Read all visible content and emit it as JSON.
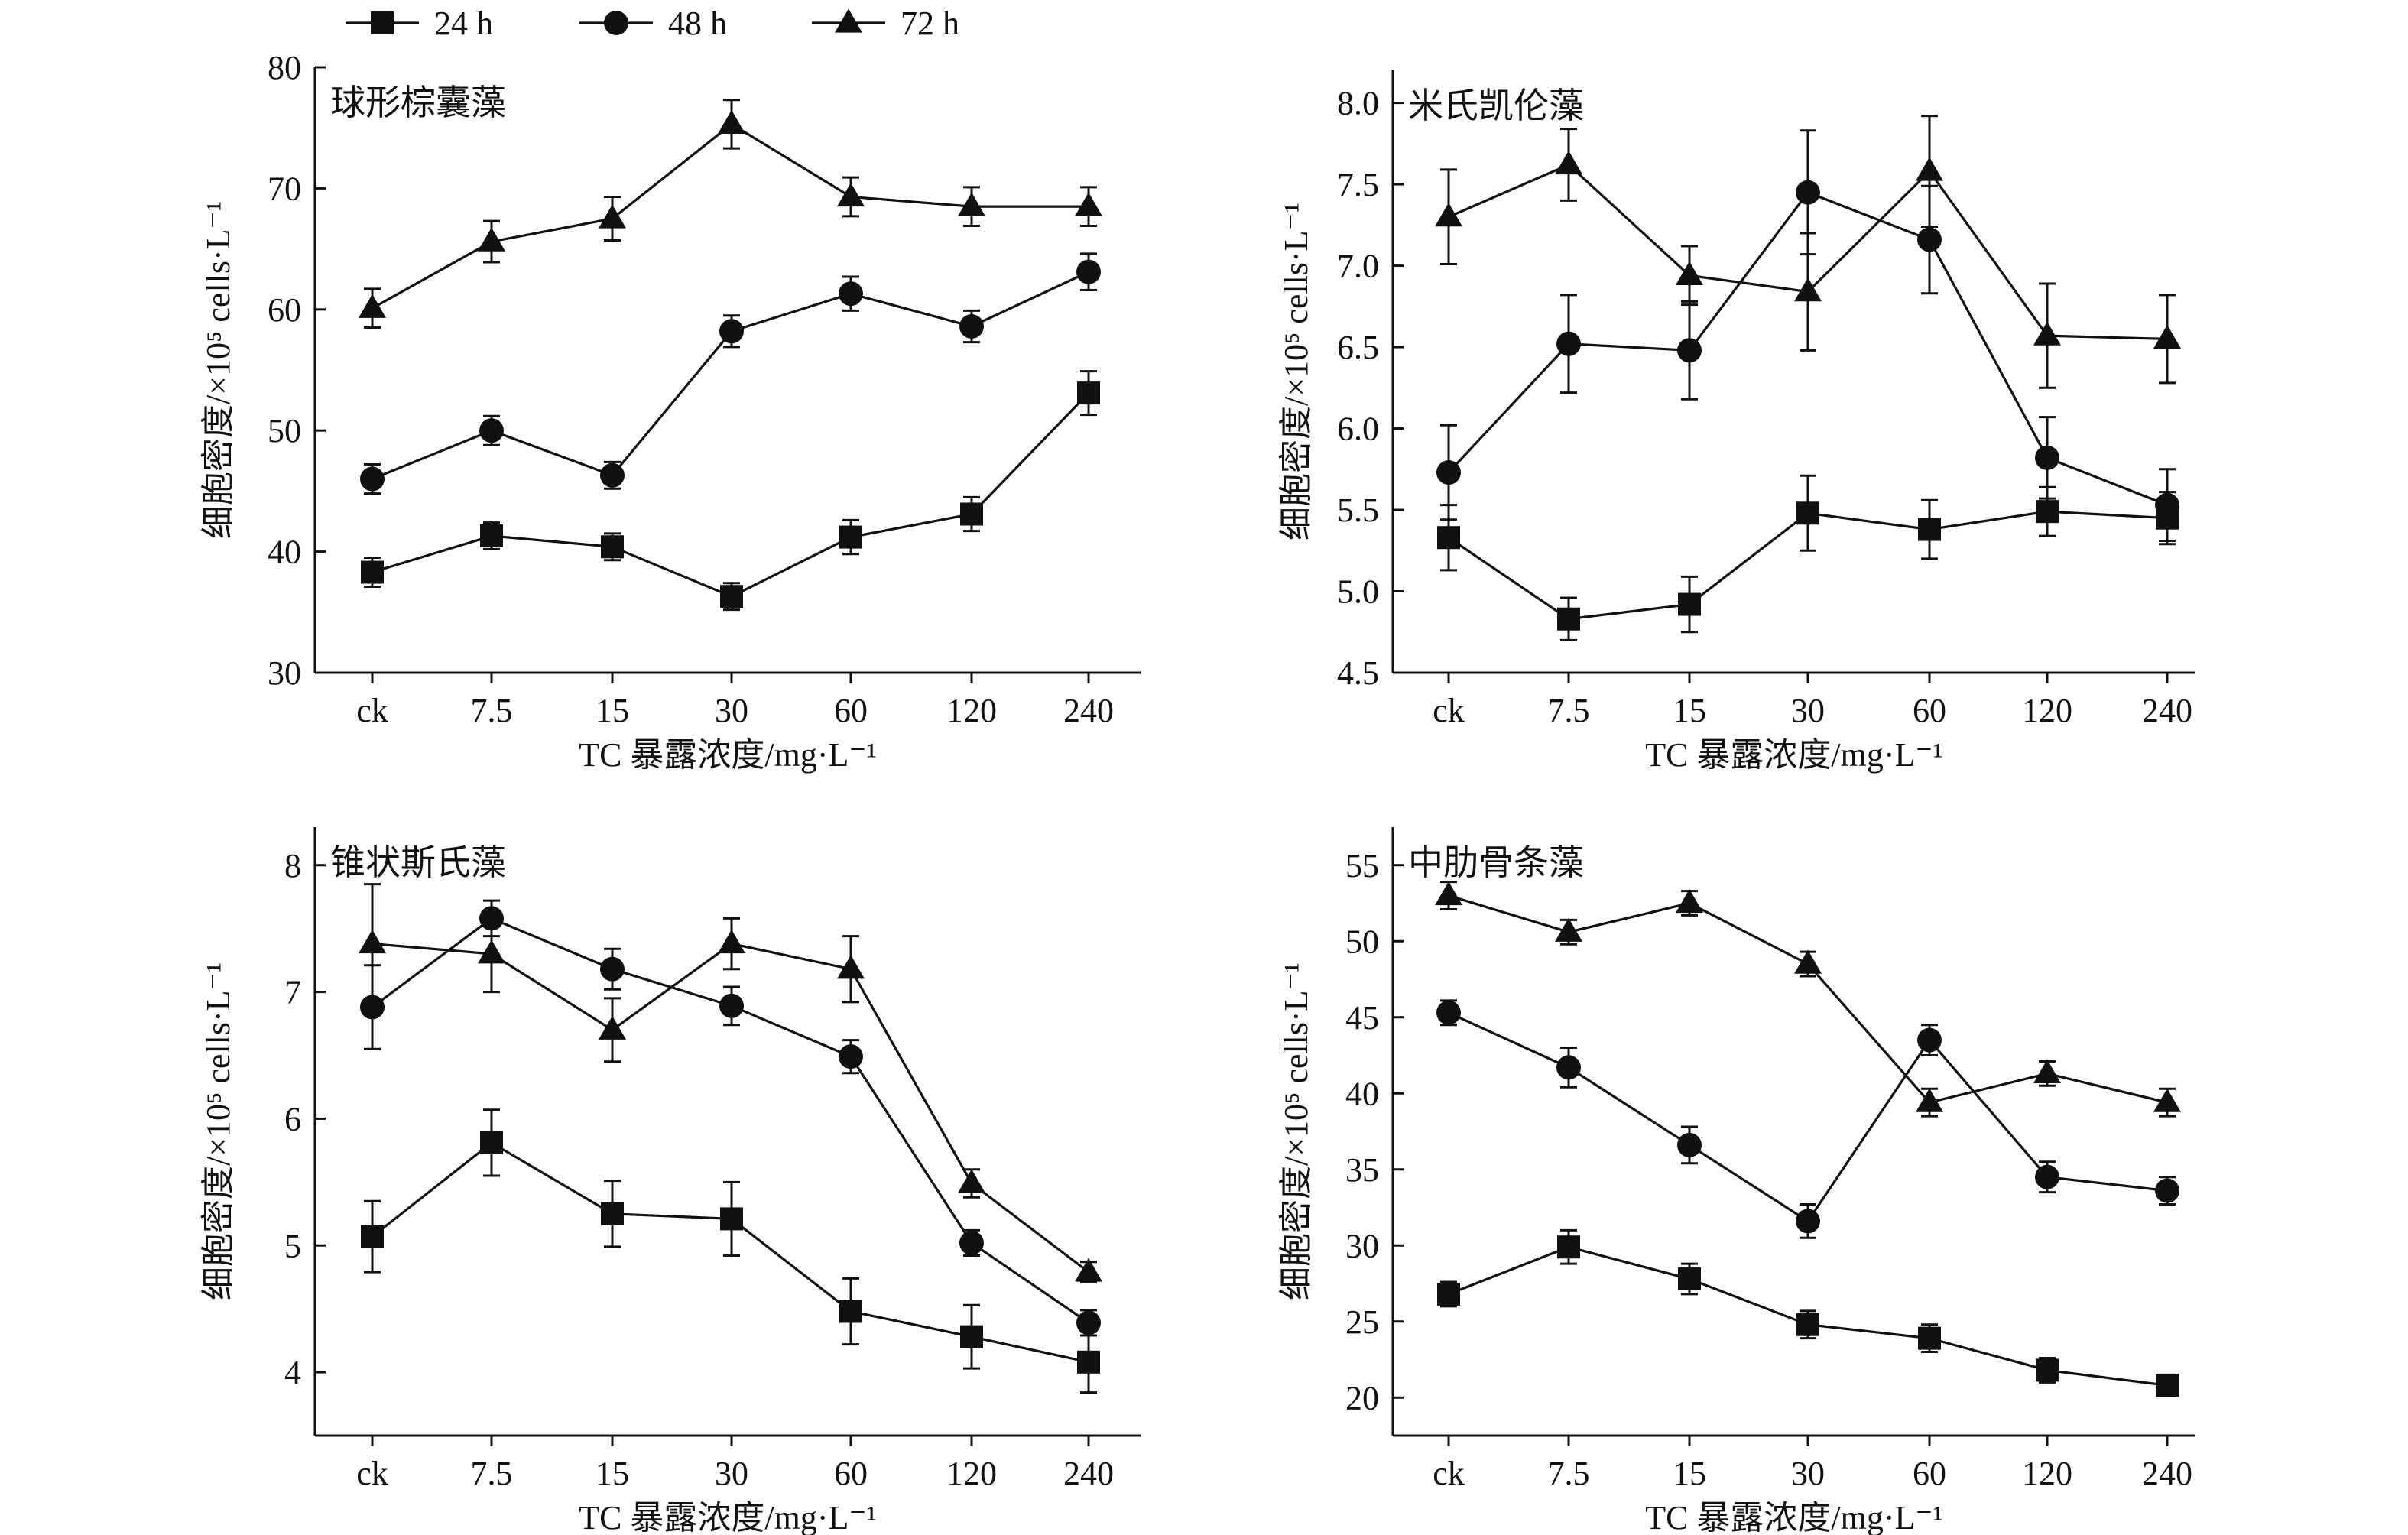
{
  "legend": [
    {
      "name": "24 h",
      "marker": "square"
    },
    {
      "name": "48 h",
      "marker": "circle"
    },
    {
      "name": "72 h",
      "marker": "triangle"
    }
  ],
  "colors": {
    "ink": "#111111",
    "background": "#ffffff"
  },
  "chart_data": [
    {
      "type": "line",
      "title": "球形棕囊藻",
      "xlabel": "TC 暴露浓度/mg·L⁻¹",
      "ylabel": "细胞密度/×10⁵ cells·L⁻¹",
      "categories": [
        "ck",
        "7.5",
        "15",
        "30",
        "60",
        "120",
        "240"
      ],
      "ylim": [
        30,
        80
      ],
      "yticks": [
        "30",
        "40",
        "50",
        "60",
        "70",
        "80"
      ],
      "series": [
        {
          "name": "24 h",
          "marker": "square",
          "values": [
            38.3,
            41.3,
            40.4,
            36.3,
            41.2,
            43.1,
            53.1
          ],
          "errors": [
            1.2,
            1.1,
            1.1,
            1.1,
            1.4,
            1.4,
            1.8
          ]
        },
        {
          "name": "48 h",
          "marker": "circle",
          "values": [
            46.0,
            50.0,
            46.3,
            58.2,
            61.3,
            58.6,
            63.1
          ],
          "errors": [
            1.2,
            1.2,
            1.1,
            1.3,
            1.4,
            1.3,
            1.5
          ]
        },
        {
          "name": "72 h",
          "marker": "triangle",
          "values": [
            60.1,
            65.6,
            67.5,
            75.3,
            69.3,
            68.5,
            68.5
          ],
          "errors": [
            1.6,
            1.7,
            1.8,
            2.0,
            1.6,
            1.6,
            1.6
          ]
        }
      ]
    },
    {
      "type": "line",
      "title": "米氏凯伦藻",
      "xlabel": "TC 暴露浓度/mg·L⁻¹",
      "ylabel": "细胞密度/×10⁵ cells·L⁻¹",
      "categories": [
        "ck",
        "7.5",
        "15",
        "30",
        "60",
        "120",
        "240"
      ],
      "ylim": [
        4.5,
        8.2
      ],
      "yticks": [
        "4.5",
        "5.0",
        "5.5",
        "6.0",
        "6.5",
        "7.0",
        "7.5",
        "8.0"
      ],
      "series": [
        {
          "name": "24 h",
          "marker": "square",
          "values": [
            5.33,
            4.83,
            4.92,
            5.48,
            5.38,
            5.49,
            5.45
          ],
          "errors": [
            0.2,
            0.13,
            0.17,
            0.23,
            0.18,
            0.15,
            0.16
          ]
        },
        {
          "name": "48 h",
          "marker": "circle",
          "values": [
            5.73,
            6.52,
            6.48,
            7.45,
            7.16,
            5.82,
            5.53
          ],
          "errors": [
            0.29,
            0.3,
            0.3,
            0.38,
            0.33,
            0.25,
            0.22
          ]
        },
        {
          "name": "72 h",
          "marker": "triangle",
          "values": [
            7.3,
            7.62,
            6.94,
            6.84,
            7.58,
            6.57,
            6.55
          ],
          "errors": [
            0.29,
            0.22,
            0.18,
            0.36,
            0.34,
            0.32,
            0.27
          ]
        }
      ]
    },
    {
      "type": "line",
      "title": "锥状斯氏藻",
      "xlabel": "TC 暴露浓度/mg·L⁻¹",
      "ylabel": "细胞密度/×10⁵ cells·L⁻¹",
      "categories": [
        "ck",
        "7.5",
        "15",
        "30",
        "60",
        "120",
        "240"
      ],
      "ylim": [
        3.5,
        8.3
      ],
      "yticks": [
        "4",
        "5",
        "6",
        "7",
        "8"
      ],
      "series": [
        {
          "name": "24 h",
          "marker": "square",
          "values": [
            5.07,
            5.81,
            5.25,
            5.21,
            4.48,
            4.28,
            4.08
          ],
          "errors": [
            0.28,
            0.26,
            0.26,
            0.29,
            0.26,
            0.25,
            0.24
          ]
        },
        {
          "name": "48 h",
          "marker": "circle",
          "values": [
            6.88,
            7.58,
            7.18,
            6.89,
            6.49,
            5.02,
            4.39
          ],
          "errors": [
            0.33,
            0.14,
            0.16,
            0.15,
            0.13,
            0.1,
            0.1
          ]
        },
        {
          "name": "72 h",
          "marker": "triangle",
          "values": [
            7.38,
            7.3,
            6.7,
            7.38,
            7.18,
            5.49,
            4.79
          ],
          "errors": [
            0.47,
            0.3,
            0.25,
            0.2,
            0.26,
            0.11,
            0.08
          ]
        }
      ]
    },
    {
      "type": "line",
      "title": "中肋骨条藻",
      "xlabel": "TC 暴露浓度/mg·L⁻¹",
      "ylabel": "细胞密度/×10⁵ cells·L⁻¹",
      "categories": [
        "ck",
        "7.5",
        "15",
        "30",
        "60",
        "120",
        "240"
      ],
      "ylim": [
        17.5,
        57.5
      ],
      "yticks": [
        "20",
        "25",
        "30",
        "35",
        "40",
        "45",
        "50",
        "55"
      ],
      "series": [
        {
          "name": "24 h",
          "marker": "square",
          "values": [
            26.8,
            29.9,
            27.8,
            24.8,
            23.9,
            21.8,
            20.8
          ],
          "errors": [
            0.8,
            1.1,
            1.0,
            0.9,
            0.9,
            0.8,
            0.7
          ]
        },
        {
          "name": "48 h",
          "marker": "circle",
          "values": [
            45.3,
            41.7,
            36.6,
            31.6,
            43.5,
            34.5,
            33.6
          ],
          "errors": [
            0.8,
            1.3,
            1.2,
            1.1,
            1.0,
            1.0,
            0.9
          ]
        },
        {
          "name": "72 h",
          "marker": "triangle",
          "values": [
            53.0,
            50.6,
            52.5,
            48.5,
            39.4,
            41.3,
            39.4
          ],
          "errors": [
            0.9,
            0.8,
            0.8,
            0.8,
            0.9,
            0.8,
            0.9
          ]
        }
      ]
    }
  ]
}
